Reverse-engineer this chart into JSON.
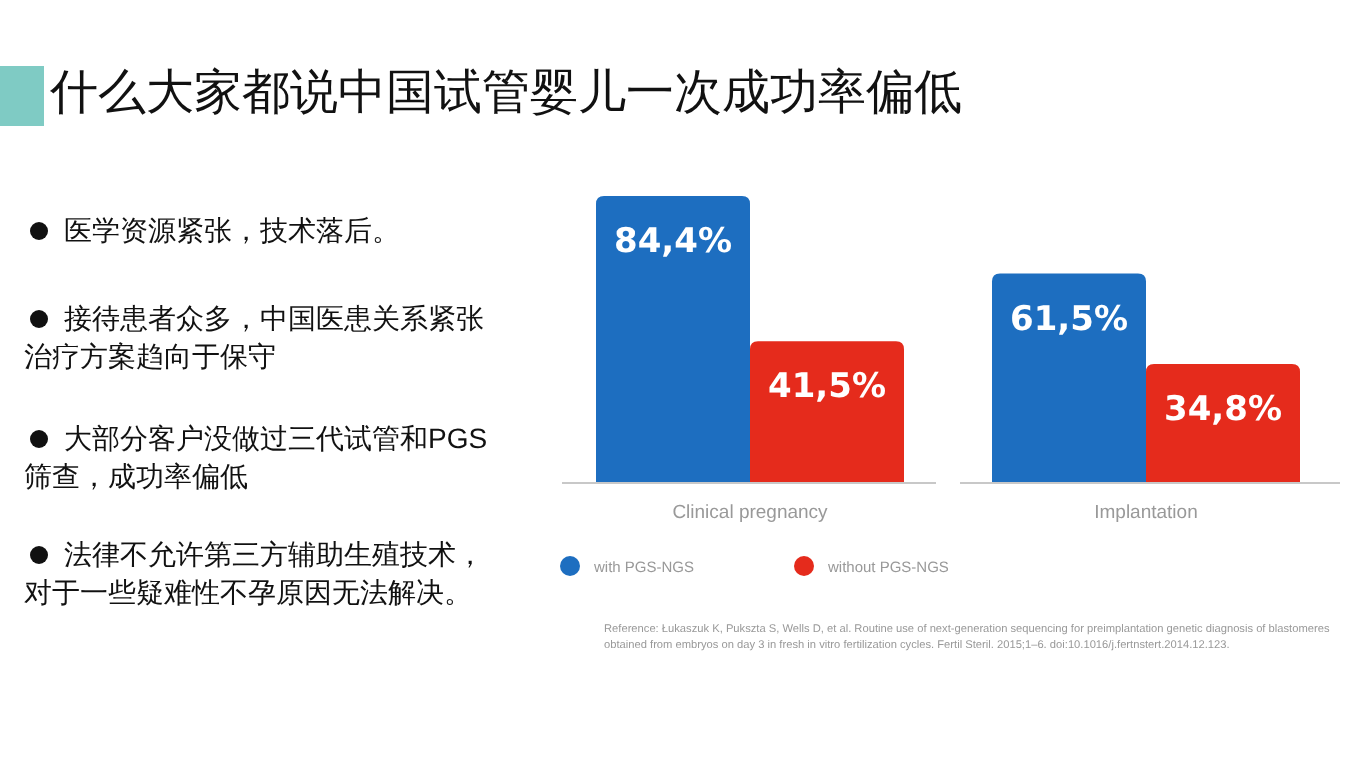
{
  "chart_data": {
    "type": "bar",
    "title": "什么大家都说中国试管婴儿一次成功率偏低",
    "categories": [
      "Clinical pregnancy",
      "Implantation"
    ],
    "series": [
      {
        "name": "with PGS-NGS",
        "color": "#1d6ec0",
        "values": [
          84.4,
          61.5
        ],
        "value_labels": [
          "84,4%",
          "61,5%"
        ]
      },
      {
        "name": "without PGS-NGS",
        "color": "#e52b1c",
        "values": [
          41.5,
          34.8
        ],
        "value_labels": [
          "41,5%",
          "34,8%"
        ]
      }
    ],
    "legend": "bottom",
    "annotations": [
      "医学资源紧张，技术落后。",
      "接待患者众多，中国医患关系紧张治疗方案趋向于保守",
      "大部分客户没做过三代试管和PGS筛查，成功率偏低",
      "法律不允许第三方辅助生殖技术，对于一些疑难性不孕原因无法解决。",
      "Reference: Łukaszuk K, Pukszta S, Wells D, et al. Routine use of next-generation sequencing for preimplantation genetic diagnosis of blastomeres obtained from embryos on day 3 in fresh in vitro fertilization cycles. Fertil Steril. 2015;1–6. doi:10.1016/j.fertnstert.2014.12.123."
    ]
  }
}
